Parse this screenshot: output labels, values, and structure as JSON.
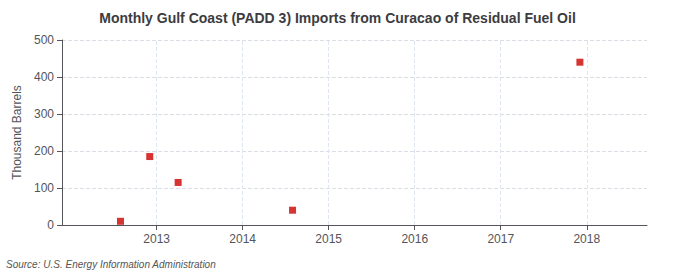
{
  "chart_data": {
    "type": "scatter",
    "title": "Monthly Gulf Coast (PADD 3) Imports from Curacao of Residual Fuel Oil",
    "ylabel": "Thousand Barrels",
    "source": "Source: U.S. Energy Information Administration",
    "x": [
      2012.58,
      2012.92,
      2013.25,
      2014.58,
      2017.92
    ],
    "values": [
      10,
      185,
      115,
      40,
      440
    ],
    "color": "#cc0000",
    "marker": "square",
    "xlim": [
      2011.9,
      2018.7
    ],
    "xticks": [
      2013,
      2014,
      2015,
      2016,
      2017,
      2018
    ],
    "ylim": [
      0,
      500
    ],
    "yticks": [
      0,
      100,
      200,
      300,
      400,
      500
    ],
    "grid": true
  }
}
